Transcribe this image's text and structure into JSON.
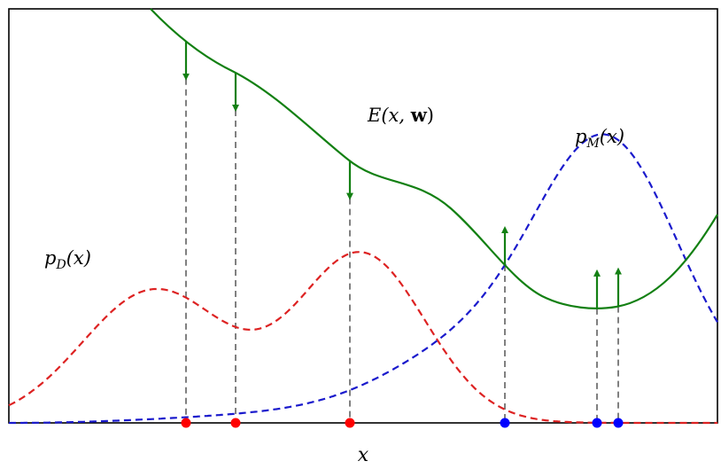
{
  "labels": {
    "energy": "E(x, w)",
    "energy_prefix": "E(x, ",
    "energy_bold": "w",
    "energy_suffix": ")",
    "model_density": "p_M(x)",
    "model_prefix": "p",
    "model_sub": "M",
    "model_suffix": "(x)",
    "data_density": "p_D(x)",
    "data_prefix": "p",
    "data_sub": "D",
    "data_suffix": "(x)",
    "x_axis": "x"
  },
  "colors": {
    "energy": "#138013",
    "model": "#1a1acc",
    "data": "#dd2222",
    "guide": "#808080",
    "frame": "#000000",
    "data_points": "#ff0000",
    "model_points": "#0000ff"
  },
  "diagram": {
    "x_domain": [
      0,
      800
    ],
    "data_samples": [
      200,
      256,
      385
    ],
    "model_samples": [
      560,
      664,
      688
    ],
    "down_arrows_at": [
      200,
      256,
      385
    ],
    "up_arrows_at": [
      560,
      664,
      688
    ],
    "line_styles": {
      "energy": "solid",
      "model_density": "dashed",
      "data_density": "dashed",
      "guides": "dashed"
    }
  }
}
